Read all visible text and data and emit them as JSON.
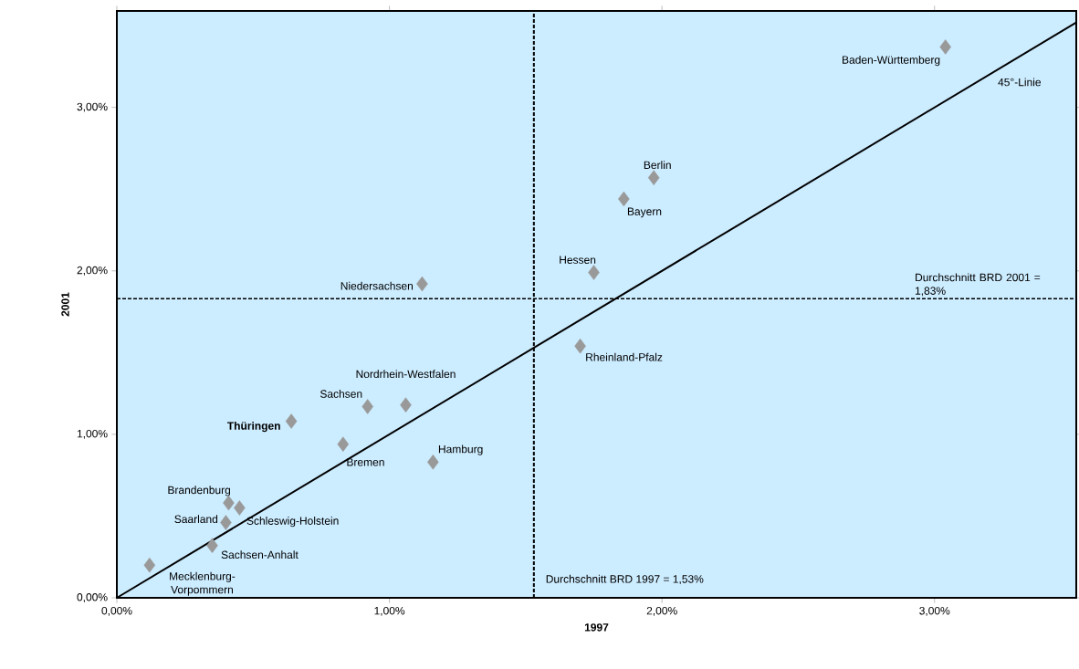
{
  "chart_data": {
    "type": "scatter",
    "xlabel": "1997",
    "ylabel": "2001",
    "grid": false,
    "xlim": [
      0,
      3.52
    ],
    "ylim": [
      0,
      3.59
    ],
    "xticks": [
      {
        "value": 0,
        "label": "0,00%"
      },
      {
        "value": 1,
        "label": "1,00%"
      },
      {
        "value": 2,
        "label": "2,00%"
      },
      {
        "value": 3,
        "label": "3,00%"
      }
    ],
    "yticks": [
      {
        "value": 0,
        "label": "0,00%"
      },
      {
        "value": 1,
        "label": "1,00%"
      },
      {
        "value": 2,
        "label": "2,00%"
      },
      {
        "value": 3,
        "label": "3,00%"
      }
    ],
    "series": [
      {
        "marker": "diamond",
        "color": "#999999",
        "x": [
          3.04,
          1.97,
          1.86,
          1.75,
          1.12,
          1.7,
          1.06,
          0.92,
          0.64,
          0.83,
          1.16,
          0.41,
          0.45,
          0.4,
          0.35,
          0.12
        ],
        "values": [
          3.37,
          2.57,
          2.44,
          1.99,
          1.92,
          1.54,
          1.18,
          1.17,
          1.08,
          0.94,
          0.83,
          0.58,
          0.55,
          0.46,
          0.32,
          0.2
        ]
      },
      {
        "type": "line",
        "marker": "none",
        "name": "45°-Linie",
        "color": "#000000",
        "line_style": "solid",
        "x": [
          0,
          3.52
        ],
        "values": [
          0,
          3.52
        ]
      }
    ],
    "ref_lines": [
      {
        "axis": "x",
        "value": 1.53,
        "label": "Durchschnitt BRD 1997 = 1,53%",
        "color": "#000000",
        "line_style": "dashed"
      },
      {
        "axis": "y",
        "value": 1.83,
        "label": "Durchschnitt BRD 2001 = 1,83%",
        "color": "#000000",
        "line_style": "dashed"
      }
    ],
    "annotations": [
      {
        "text": "Baden-Württemberg",
        "x": 3.04,
        "y": 3.37
      },
      {
        "text": "Berlin",
        "x": 1.97,
        "y": 2.57
      },
      {
        "text": "Bayern",
        "x": 1.86,
        "y": 2.44
      },
      {
        "text": "Hessen",
        "x": 1.75,
        "y": 1.99
      },
      {
        "text": "Niedersachsen",
        "x": 1.12,
        "y": 1.92
      },
      {
        "text": "Rheinland-Pfalz",
        "x": 1.7,
        "y": 1.54
      },
      {
        "text": "Nordrhein-Westfalen",
        "x": 1.06,
        "y": 1.18
      },
      {
        "text": "Sachsen",
        "x": 0.92,
        "y": 1.17
      },
      {
        "text": "**Thüringen**",
        "x": 0.64,
        "y": 1.08
      },
      {
        "text": "Bremen",
        "x": 0.83,
        "y": 0.94
      },
      {
        "text": "Hamburg",
        "x": 1.16,
        "y": 0.83
      },
      {
        "text": "Brandenburg",
        "x": 0.41,
        "y": 0.58
      },
      {
        "text": "Schleswig-Holstein",
        "x": 0.45,
        "y": 0.55
      },
      {
        "text": "Saarland",
        "x": 0.4,
        "y": 0.46
      },
      {
        "text": "Sachsen-Anhalt",
        "x": 0.35,
        "y": 0.32
      },
      {
        "text": "Mecklenburg-Vorpommern",
        "x": 0.12,
        "y": 0.2
      }
    ]
  }
}
